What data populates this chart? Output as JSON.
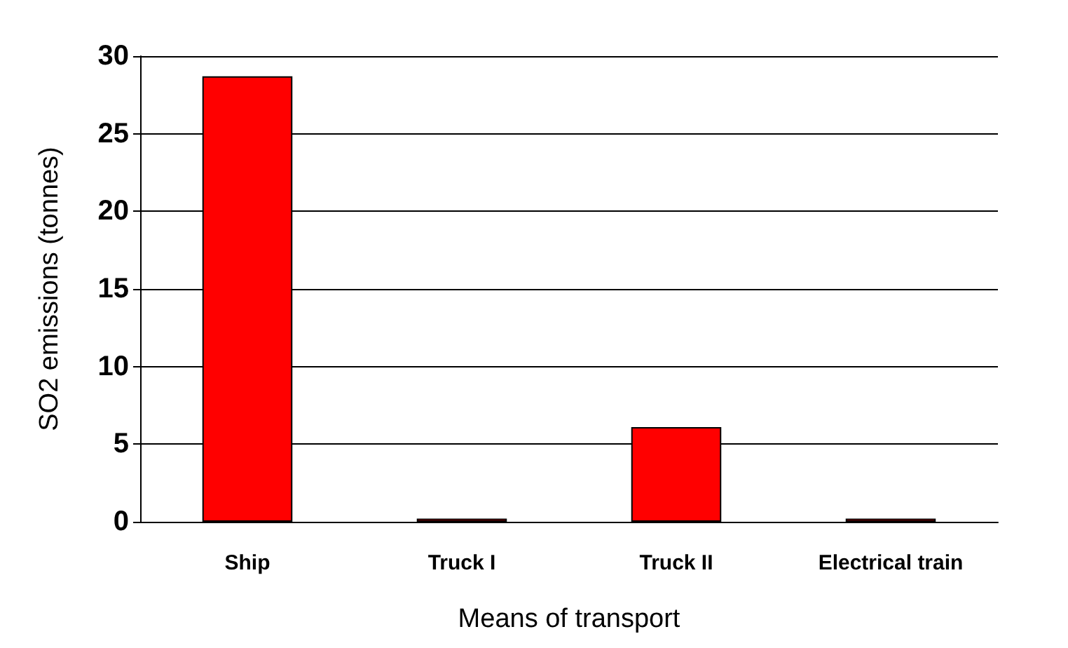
{
  "chart_data": {
    "type": "bar",
    "xlabel": "Means of transport",
    "ylabel": "SO2 emissions (tonnes)",
    "categories": [
      "Ship",
      "Truck I",
      "Truck II",
      "Electrical train"
    ],
    "values": [
      28.7,
      0.2,
      6.1,
      0.2
    ],
    "color": "#ff0000",
    "ylim": [
      0,
      30
    ],
    "yticks": [
      0,
      5,
      10,
      15,
      20,
      25,
      30
    ],
    "grid": "y"
  }
}
